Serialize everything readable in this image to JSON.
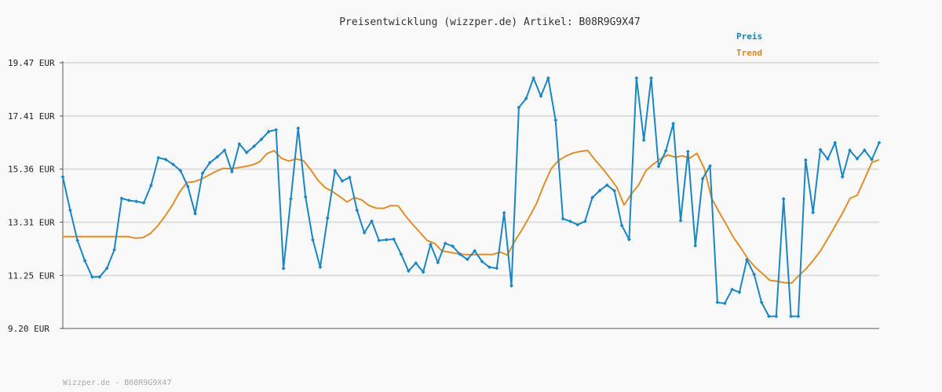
{
  "chart_data": {
    "type": "line",
    "title": "Preisentwicklung (wizzper.de) Artikel: B08R9G9X47",
    "footer": "Wizzper.de - B08R9G9X47",
    "y_tick_labels": [
      "19.47 EUR",
      "17.41 EUR",
      "15.36 EUR",
      "13.31 EUR",
      "11.25 EUR",
      "9.20 EUR"
    ],
    "y_ticks": [
      19.47,
      17.41,
      15.36,
      13.31,
      11.25,
      9.2
    ],
    "ylim": [
      9.2,
      19.47
    ],
    "grid": true,
    "legend_position": "top-right",
    "colors": {
      "preis": "#1a86c4",
      "trend": "#e08e2b",
      "legend_preis": "#1a7fb5",
      "legend_trend": "#d9861f",
      "grid": "#dddddd",
      "axis": "#555555"
    },
    "series": [
      {
        "name": "Preis",
        "values": [
          15.06,
          13.77,
          12.6,
          11.82,
          11.19,
          11.19,
          11.53,
          12.24,
          14.23,
          14.15,
          14.11,
          14.05,
          14.73,
          15.8,
          15.73,
          15.54,
          15.3,
          14.69,
          13.64,
          15.2,
          15.61,
          15.83,
          16.09,
          15.26,
          16.33,
          16.0,
          16.24,
          16.51,
          16.81,
          16.88,
          11.52,
          14.21,
          16.94,
          14.28,
          12.62,
          11.57,
          13.47,
          15.3,
          14.9,
          15.04,
          13.77,
          12.9,
          13.35,
          12.6,
          12.63,
          12.65,
          12.07,
          11.42,
          11.73,
          11.38,
          12.45,
          11.75,
          12.49,
          12.38,
          12.07,
          11.87,
          12.2,
          11.79,
          11.57,
          11.53,
          13.67,
          10.85,
          17.74,
          18.09,
          18.88,
          18.18,
          18.88,
          17.25,
          13.44,
          13.34,
          13.21,
          13.34,
          14.26,
          14.53,
          14.74,
          14.52,
          13.18,
          12.64,
          18.88,
          16.48,
          18.88,
          15.46,
          16.07,
          17.12,
          13.37,
          16.04,
          12.4,
          14.99,
          15.48,
          10.21,
          10.17,
          10.71,
          10.6,
          11.86,
          11.29,
          10.21,
          9.67,
          9.67,
          14.21,
          9.67,
          9.67,
          15.71,
          13.68,
          16.11,
          15.75,
          16.38,
          15.06,
          16.09,
          15.76,
          16.09,
          15.73,
          16.38
        ]
      },
      {
        "name": "Trend",
        "values": [
          12.75,
          12.75,
          12.75,
          12.75,
          12.75,
          12.75,
          12.75,
          12.75,
          12.75,
          12.75,
          12.69,
          12.71,
          12.87,
          13.16,
          13.53,
          13.95,
          14.46,
          14.84,
          14.87,
          14.97,
          15.12,
          15.27,
          15.39,
          15.37,
          15.41,
          15.46,
          15.52,
          15.64,
          15.96,
          16.07,
          15.77,
          15.67,
          15.75,
          15.69,
          15.34,
          14.93,
          14.64,
          14.49,
          14.3,
          14.09,
          14.26,
          14.17,
          13.95,
          13.85,
          13.84,
          13.95,
          13.94,
          13.56,
          13.22,
          12.91,
          12.6,
          12.49,
          12.2,
          12.15,
          12.1,
          12.06,
          12.05,
          12.06,
          12.06,
          12.06,
          12.15,
          12.04,
          12.57,
          13.02,
          13.51,
          14.04,
          14.75,
          15.37,
          15.69,
          15.86,
          15.98,
          16.04,
          16.08,
          15.72,
          15.4,
          15.04,
          14.66,
          13.97,
          14.4,
          14.75,
          15.3,
          15.55,
          15.75,
          15.91,
          15.82,
          15.87,
          15.78,
          15.97,
          15.39,
          14.24,
          13.72,
          13.23,
          12.72,
          12.32,
          11.88,
          11.57,
          11.32,
          11.06,
          11.03,
          10.97,
          10.96,
          11.25,
          11.51,
          11.85,
          12.22,
          12.7,
          13.18,
          13.68,
          14.23,
          14.35,
          14.98,
          15.62,
          15.72
        ]
      }
    ]
  }
}
